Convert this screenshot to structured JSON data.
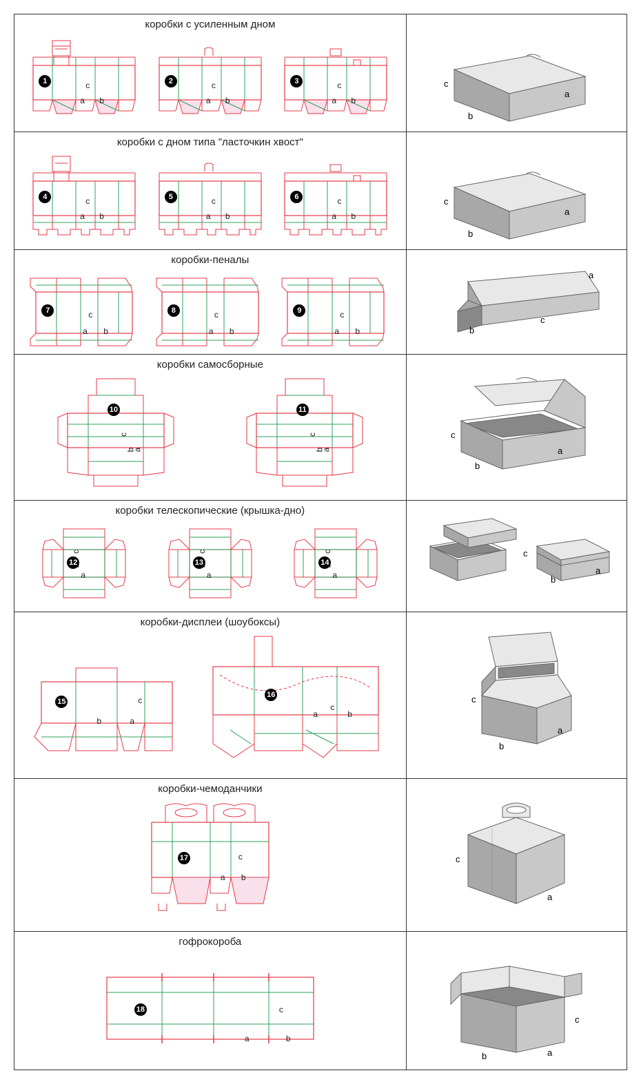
{
  "colors": {
    "cut_line": "#e63946",
    "fold_line": "#2ca05a",
    "fill_accent": "#f4c2d7",
    "border": "#333333",
    "text": "#222222",
    "badge_bg": "#000000",
    "badge_fg": "#ffffff",
    "box_light": "#e8e8e8",
    "box_mid": "#c8c8c8",
    "box_dark": "#a8a8a8",
    "box_darker": "#888888"
  },
  "dim_labels": [
    "a",
    "b",
    "c"
  ],
  "rows": [
    {
      "title": "коробки с усиленным дном",
      "items": [
        1,
        2,
        3
      ],
      "dieline_type": "reinforced",
      "box3d": "closed_rect"
    },
    {
      "title": "коробки с дном типа \"ласточкин хвост\"",
      "items": [
        4,
        5,
        6
      ],
      "dieline_type": "dovetail",
      "box3d": "closed_rect"
    },
    {
      "title": "коробки-пеналы",
      "items": [
        7,
        8,
        9
      ],
      "dieline_type": "sleeve",
      "box3d": "sleeve"
    },
    {
      "title": "коробки самосборные",
      "items": [
        10,
        11
      ],
      "dieline_type": "self_assembly",
      "box3d": "hinged_open"
    },
    {
      "title": "коробки телескопические (крышка-дно)",
      "items": [
        12,
        13,
        14
      ],
      "dieline_type": "telescope",
      "box3d": "lid_base"
    },
    {
      "title": "коробки-дисплеи (шоубоксы)",
      "items": [
        15,
        16
      ],
      "dieline_type": "display",
      "box3d": "display_open"
    },
    {
      "title": "коробки-чемоданчики",
      "items": [
        17
      ],
      "dieline_type": "handle",
      "box3d": "handle_box"
    },
    {
      "title": "гофрокороба",
      "items": [
        18
      ],
      "dieline_type": "corrugated",
      "box3d": "open_flaps"
    }
  ]
}
